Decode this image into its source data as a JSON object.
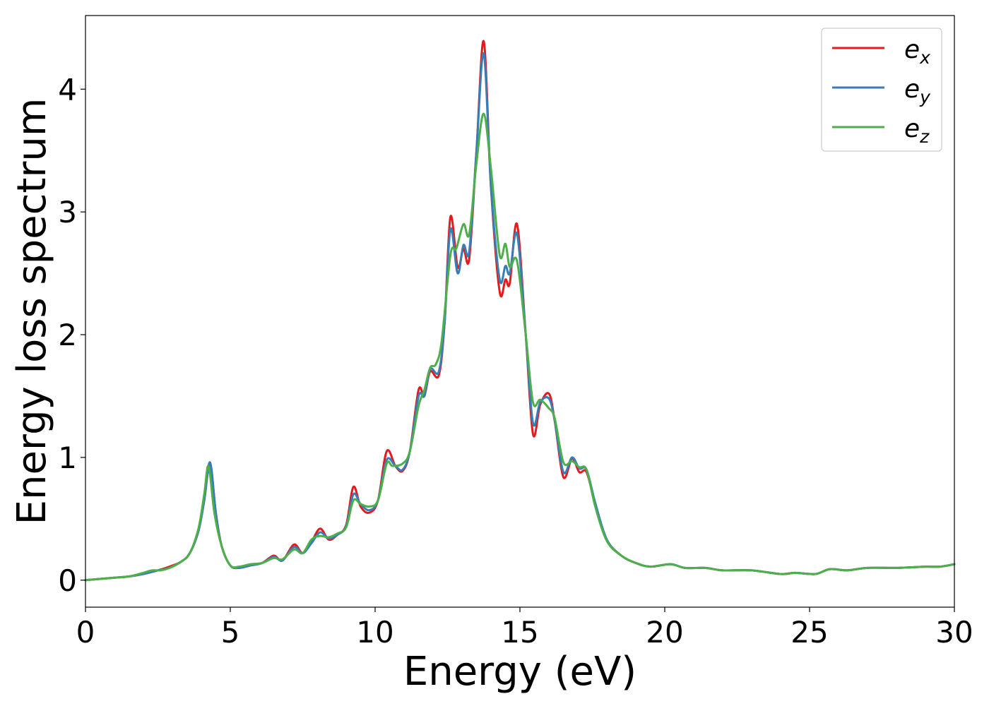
{
  "chart_data": {
    "type": "line",
    "title": "",
    "xlabel": "Energy (eV)",
    "ylabel": "Energy loss spectrum",
    "xlim": [
      0,
      30
    ],
    "ylim": [
      -0.22,
      4.6
    ],
    "xticks": [
      0,
      5,
      10,
      15,
      20,
      25,
      30
    ],
    "yticks": [
      0,
      1,
      2,
      3,
      4
    ],
    "grid": false,
    "legend_position": "top-right",
    "series": [
      {
        "name": "e_x",
        "label_base": "e",
        "label_sub": "x",
        "color": "#e41a1c",
        "points": [
          [
            0,
            0
          ],
          [
            0.5,
            0.01
          ],
          [
            1.0,
            0.02
          ],
          [
            1.5,
            0.03
          ],
          [
            2.0,
            0.05
          ],
          [
            2.5,
            0.08
          ],
          [
            2.9,
            0.11
          ],
          [
            3.3,
            0.15
          ],
          [
            3.6,
            0.22
          ],
          [
            3.9,
            0.4
          ],
          [
            4.1,
            0.65
          ],
          [
            4.3,
            0.95
          ],
          [
            4.5,
            0.55
          ],
          [
            4.7,
            0.28
          ],
          [
            5.0,
            0.12
          ],
          [
            5.3,
            0.1
          ],
          [
            5.7,
            0.12
          ],
          [
            6.1,
            0.14
          ],
          [
            6.5,
            0.2
          ],
          [
            6.8,
            0.16
          ],
          [
            7.2,
            0.29
          ],
          [
            7.5,
            0.22
          ],
          [
            7.8,
            0.31
          ],
          [
            8.1,
            0.42
          ],
          [
            8.4,
            0.33
          ],
          [
            8.7,
            0.37
          ],
          [
            9.0,
            0.45
          ],
          [
            9.25,
            0.76
          ],
          [
            9.5,
            0.6
          ],
          [
            9.8,
            0.55
          ],
          [
            10.1,
            0.65
          ],
          [
            10.4,
            1.05
          ],
          [
            10.7,
            0.93
          ],
          [
            10.95,
            0.89
          ],
          [
            11.2,
            1.05
          ],
          [
            11.5,
            1.55
          ],
          [
            11.7,
            1.5
          ],
          [
            11.9,
            1.7
          ],
          [
            12.2,
            1.67
          ],
          [
            12.4,
            2.1
          ],
          [
            12.6,
            2.96
          ],
          [
            12.85,
            2.55
          ],
          [
            13.05,
            2.7
          ],
          [
            13.25,
            2.62
          ],
          [
            13.5,
            3.5
          ],
          [
            13.75,
            4.39
          ],
          [
            14.0,
            3.2
          ],
          [
            14.3,
            2.35
          ],
          [
            14.5,
            2.45
          ],
          [
            14.65,
            2.42
          ],
          [
            14.9,
            2.9
          ],
          [
            15.2,
            2.0
          ],
          [
            15.45,
            1.19
          ],
          [
            15.7,
            1.43
          ],
          [
            16.0,
            1.52
          ],
          [
            16.2,
            1.3
          ],
          [
            16.5,
            0.84
          ],
          [
            16.8,
            0.99
          ],
          [
            17.05,
            0.88
          ],
          [
            17.3,
            0.88
          ],
          [
            17.6,
            0.62
          ],
          [
            18.0,
            0.33
          ],
          [
            18.5,
            0.2
          ],
          [
            19.0,
            0.14
          ],
          [
            19.5,
            0.11
          ],
          [
            20.2,
            0.13
          ],
          [
            20.7,
            0.1
          ],
          [
            21.4,
            0.1
          ],
          [
            22.0,
            0.08
          ],
          [
            23.0,
            0.08
          ],
          [
            24.0,
            0.05
          ],
          [
            24.5,
            0.06
          ],
          [
            25.2,
            0.05
          ],
          [
            25.7,
            0.09
          ],
          [
            26.3,
            0.08
          ],
          [
            27.0,
            0.1
          ],
          [
            28.0,
            0.1
          ],
          [
            29.0,
            0.11
          ],
          [
            29.5,
            0.11
          ],
          [
            30.0,
            0.13
          ]
        ]
      },
      {
        "name": "e_y",
        "label_base": "e",
        "label_sub": "y",
        "color": "#377eb8",
        "points": [
          [
            0,
            0
          ],
          [
            0.5,
            0.01
          ],
          [
            1.0,
            0.02
          ],
          [
            1.5,
            0.03
          ],
          [
            2.0,
            0.05
          ],
          [
            2.5,
            0.08
          ],
          [
            2.9,
            0.1
          ],
          [
            3.3,
            0.15
          ],
          [
            3.6,
            0.22
          ],
          [
            3.9,
            0.4
          ],
          [
            4.1,
            0.65
          ],
          [
            4.3,
            0.96
          ],
          [
            4.5,
            0.55
          ],
          [
            4.7,
            0.28
          ],
          [
            5.0,
            0.12
          ],
          [
            5.3,
            0.1
          ],
          [
            5.7,
            0.12
          ],
          [
            6.1,
            0.14
          ],
          [
            6.5,
            0.19
          ],
          [
            6.8,
            0.16
          ],
          [
            7.2,
            0.27
          ],
          [
            7.5,
            0.22
          ],
          [
            7.8,
            0.3
          ],
          [
            8.1,
            0.39
          ],
          [
            8.4,
            0.34
          ],
          [
            8.7,
            0.37
          ],
          [
            9.0,
            0.44
          ],
          [
            9.25,
            0.7
          ],
          [
            9.5,
            0.62
          ],
          [
            9.8,
            0.57
          ],
          [
            10.1,
            0.65
          ],
          [
            10.4,
            0.98
          ],
          [
            10.7,
            0.93
          ],
          [
            10.95,
            0.9
          ],
          [
            11.2,
            1.05
          ],
          [
            11.5,
            1.5
          ],
          [
            11.7,
            1.5
          ],
          [
            11.9,
            1.72
          ],
          [
            12.2,
            1.7
          ],
          [
            12.4,
            2.1
          ],
          [
            12.6,
            2.86
          ],
          [
            12.85,
            2.5
          ],
          [
            13.05,
            2.73
          ],
          [
            13.25,
            2.68
          ],
          [
            13.5,
            3.5
          ],
          [
            13.75,
            4.29
          ],
          [
            14.0,
            3.2
          ],
          [
            14.3,
            2.45
          ],
          [
            14.5,
            2.56
          ],
          [
            14.65,
            2.5
          ],
          [
            14.9,
            2.82
          ],
          [
            15.2,
            2.0
          ],
          [
            15.45,
            1.28
          ],
          [
            15.7,
            1.45
          ],
          [
            16.0,
            1.48
          ],
          [
            16.2,
            1.3
          ],
          [
            16.5,
            0.88
          ],
          [
            16.8,
            1.0
          ],
          [
            17.05,
            0.91
          ],
          [
            17.3,
            0.9
          ],
          [
            17.6,
            0.63
          ],
          [
            18.0,
            0.33
          ],
          [
            18.5,
            0.2
          ],
          [
            19.0,
            0.14
          ],
          [
            19.5,
            0.11
          ],
          [
            20.2,
            0.13
          ],
          [
            20.7,
            0.1
          ],
          [
            21.4,
            0.1
          ],
          [
            22.0,
            0.08
          ],
          [
            23.0,
            0.08
          ],
          [
            24.0,
            0.05
          ],
          [
            24.5,
            0.06
          ],
          [
            25.2,
            0.05
          ],
          [
            25.7,
            0.09
          ],
          [
            26.3,
            0.08
          ],
          [
            27.0,
            0.1
          ],
          [
            28.0,
            0.1
          ],
          [
            29.0,
            0.11
          ],
          [
            29.5,
            0.11
          ],
          [
            30.0,
            0.13
          ]
        ]
      },
      {
        "name": "e_z",
        "label_base": "e",
        "label_sub": "z",
        "color": "#4daf4a",
        "points": [
          [
            0,
            0
          ],
          [
            0.5,
            0.01
          ],
          [
            1.0,
            0.02
          ],
          [
            1.5,
            0.03
          ],
          [
            2.0,
            0.06
          ],
          [
            2.3,
            0.08
          ],
          [
            2.6,
            0.08
          ],
          [
            2.9,
            0.1
          ],
          [
            3.3,
            0.15
          ],
          [
            3.6,
            0.22
          ],
          [
            3.9,
            0.42
          ],
          [
            4.1,
            0.7
          ],
          [
            4.25,
            0.93
          ],
          [
            4.45,
            0.55
          ],
          [
            4.7,
            0.28
          ],
          [
            5.0,
            0.12
          ],
          [
            5.3,
            0.11
          ],
          [
            5.7,
            0.13
          ],
          [
            6.1,
            0.14
          ],
          [
            6.5,
            0.18
          ],
          [
            6.8,
            0.17
          ],
          [
            7.2,
            0.25
          ],
          [
            7.5,
            0.22
          ],
          [
            7.8,
            0.33
          ],
          [
            8.1,
            0.36
          ],
          [
            8.4,
            0.35
          ],
          [
            8.7,
            0.38
          ],
          [
            9.0,
            0.43
          ],
          [
            9.25,
            0.65
          ],
          [
            9.5,
            0.62
          ],
          [
            9.8,
            0.6
          ],
          [
            10.1,
            0.65
          ],
          [
            10.4,
            0.95
          ],
          [
            10.6,
            0.93
          ],
          [
            10.95,
            0.95
          ],
          [
            11.2,
            1.05
          ],
          [
            11.5,
            1.42
          ],
          [
            11.7,
            1.55
          ],
          [
            11.9,
            1.73
          ],
          [
            12.1,
            1.76
          ],
          [
            12.3,
            1.95
          ],
          [
            12.6,
            2.65
          ],
          [
            12.8,
            2.7
          ],
          [
            13.05,
            2.9
          ],
          [
            13.25,
            2.82
          ],
          [
            13.5,
            3.4
          ],
          [
            13.75,
            3.8
          ],
          [
            14.0,
            3.35
          ],
          [
            14.3,
            2.65
          ],
          [
            14.5,
            2.74
          ],
          [
            14.65,
            2.55
          ],
          [
            14.9,
            2.6
          ],
          [
            15.2,
            2.0
          ],
          [
            15.45,
            1.45
          ],
          [
            15.7,
            1.47
          ],
          [
            16.0,
            1.4
          ],
          [
            16.2,
            1.32
          ],
          [
            16.5,
            0.96
          ],
          [
            16.8,
            0.97
          ],
          [
            17.05,
            0.92
          ],
          [
            17.3,
            0.9
          ],
          [
            17.6,
            0.6
          ],
          [
            18.0,
            0.32
          ],
          [
            18.5,
            0.2
          ],
          [
            19.0,
            0.14
          ],
          [
            19.5,
            0.11
          ],
          [
            20.2,
            0.13
          ],
          [
            20.7,
            0.1
          ],
          [
            21.4,
            0.1
          ],
          [
            22.0,
            0.08
          ],
          [
            23.0,
            0.08
          ],
          [
            24.0,
            0.05
          ],
          [
            24.5,
            0.06
          ],
          [
            25.2,
            0.05
          ],
          [
            25.7,
            0.09
          ],
          [
            26.3,
            0.08
          ],
          [
            27.0,
            0.1
          ],
          [
            28.0,
            0.1
          ],
          [
            29.0,
            0.11
          ],
          [
            29.5,
            0.11
          ],
          [
            30.0,
            0.13
          ]
        ]
      }
    ]
  }
}
